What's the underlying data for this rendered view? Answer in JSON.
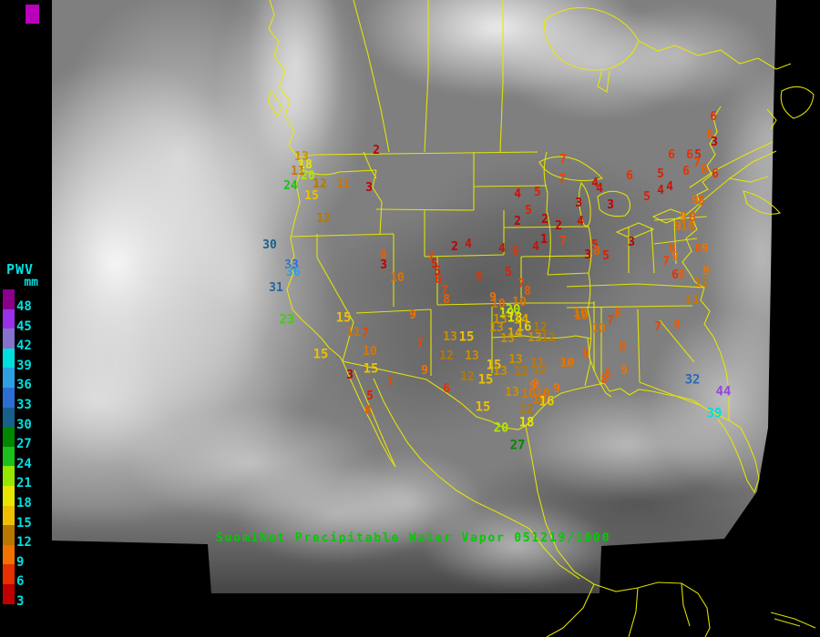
{
  "caption": {
    "text": "SuomiNet Precipitable Water Vapor 051219/1000",
    "color": "#00cc00"
  },
  "legend": {
    "title": "PWV",
    "unit": "mm",
    "text_color": "#00e0e0",
    "entries": [
      {
        "value": 48,
        "color": "#8b008b"
      },
      {
        "value": 45,
        "color": "#9a30e8"
      },
      {
        "value": 42,
        "color": "#8472cc"
      },
      {
        "value": 39,
        "color": "#00dede"
      },
      {
        "value": 36,
        "color": "#2f9fe4"
      },
      {
        "value": 33,
        "color": "#2c6fd4"
      },
      {
        "value": 30,
        "color": "#17608c"
      },
      {
        "value": 27,
        "color": "#008800"
      },
      {
        "value": 24,
        "color": "#1cc01c"
      },
      {
        "value": 21,
        "color": "#94e800"
      },
      {
        "value": 18,
        "color": "#e6e600"
      },
      {
        "value": 15,
        "color": "#eec100"
      },
      {
        "value": 12,
        "color": "#b87800"
      },
      {
        "value": 9,
        "color": "#f07200"
      },
      {
        "value": 6,
        "color": "#e63000"
      },
      {
        "value": 3,
        "color": "#c00000"
      }
    ]
  },
  "map": {
    "outline_color": "#e8e800"
  },
  "corner_box_color": "#bb00bb",
  "chart_data": {
    "type": "scatter",
    "title": "SuomiNet Precipitable Water Vapor 051219/1000",
    "legend_title": "PWV mm",
    "scale_values": [
      48,
      45,
      42,
      39,
      36,
      33,
      30,
      27,
      24,
      21,
      18,
      15,
      12,
      9,
      6,
      3
    ],
    "note": "stations = [PWV mm value, x px, y px] on 900x700 satellite map"
  },
  "stations": [
    [
      2,
      413,
      166
    ],
    [
      13,
      331,
      173
    ],
    [
      18,
      335,
      182
    ],
    [
      11,
      327,
      189
    ],
    [
      20,
      338,
      194
    ],
    [
      24,
      319,
      205
    ],
    [
      12,
      351,
      203
    ],
    [
      11,
      377,
      203
    ],
    [
      3,
      405,
      207
    ],
    [
      15,
      342,
      216
    ],
    [
      12,
      355,
      241
    ],
    [
      30,
      296,
      270
    ],
    [
      33,
      320,
      292
    ],
    [
      36,
      322,
      300
    ],
    [
      31,
      303,
      317
    ],
    [
      23,
      315,
      352
    ],
    [
      8,
      421,
      281
    ],
    [
      3,
      421,
      292
    ],
    [
      10,
      436,
      306
    ],
    [
      15,
      377,
      350
    ],
    [
      11,
      388,
      366
    ],
    [
      7,
      401,
      367
    ],
    [
      10,
      406,
      387
    ],
    [
      15,
      352,
      390
    ],
    [
      3,
      384,
      413
    ],
    [
      7,
      428,
      421
    ],
    [
      5,
      406,
      436
    ],
    [
      8,
      404,
      452
    ],
    [
      9,
      466,
      408
    ],
    [
      7,
      461,
      379
    ],
    [
      15,
      407,
      406
    ],
    [
      7,
      473,
      283
    ],
    [
      5,
      477,
      291
    ],
    [
      5,
      480,
      299
    ],
    [
      6,
      481,
      308
    ],
    [
      7,
      488,
      320
    ],
    [
      8,
      490,
      330
    ],
    [
      9,
      453,
      347
    ],
    [
      2,
      499,
      272
    ],
    [
      4,
      514,
      269
    ],
    [
      4,
      551,
      274
    ],
    [
      6,
      566,
      277
    ],
    [
      5,
      558,
      300
    ],
    [
      6,
      526,
      305
    ],
    [
      7,
      572,
      313
    ],
    [
      8,
      579,
      321
    ],
    [
      9,
      541,
      328
    ],
    [
      10,
      547,
      335
    ],
    [
      5,
      590,
      212
    ],
    [
      4,
      568,
      214
    ],
    [
      5,
      580,
      232
    ],
    [
      2,
      568,
      244
    ],
    [
      2,
      598,
      242
    ],
    [
      2,
      613,
      249
    ],
    [
      1,
      597,
      264
    ],
    [
      4,
      588,
      272
    ],
    [
      7,
      618,
      176
    ],
    [
      7,
      617,
      198
    ],
    [
      4,
      637,
      244
    ],
    [
      3,
      635,
      224
    ],
    [
      4,
      653,
      202
    ],
    [
      4,
      658,
      208
    ],
    [
      3,
      670,
      226
    ],
    [
      6,
      691,
      194
    ],
    [
      7,
      618,
      266
    ],
    [
      5,
      653,
      270
    ],
    [
      8,
      655,
      277
    ],
    [
      3,
      645,
      281
    ],
    [
      5,
      665,
      282
    ],
    [
      3,
      693,
      267
    ],
    [
      6,
      783,
      129
    ],
    [
      8,
      779,
      149
    ],
    [
      3,
      784,
      157
    ],
    [
      6,
      737,
      171
    ],
    [
      6,
      757,
      171
    ],
    [
      5,
      766,
      171
    ],
    [
      7,
      765,
      180
    ],
    [
      8,
      773,
      187
    ],
    [
      6,
      785,
      192
    ],
    [
      5,
      725,
      192
    ],
    [
      6,
      753,
      189
    ],
    [
      4,
      735,
      206
    ],
    [
      4,
      725,
      210
    ],
    [
      5,
      710,
      217
    ],
    [
      9,
      763,
      221
    ],
    [
      8,
      770,
      222
    ],
    [
      9,
      750,
      240
    ],
    [
      8,
      760,
      240
    ],
    [
      9,
      744,
      250
    ],
    [
      10,
      755,
      250
    ],
    [
      8,
      738,
      274
    ],
    [
      9,
      741,
      283
    ],
    [
      7,
      731,
      288
    ],
    [
      8,
      766,
      274
    ],
    [
      9,
      774,
      274
    ],
    [
      6,
      741,
      303
    ],
    [
      8,
      748,
      303
    ],
    [
      9,
      775,
      299
    ],
    [
      11,
      770,
      312
    ],
    [
      11,
      760,
      331
    ],
    [
      10,
      638,
      348
    ],
    [
      8,
      678,
      345
    ],
    [
      7,
      670,
      353
    ],
    [
      10,
      657,
      362
    ],
    [
      7,
      722,
      360
    ],
    [
      8,
      743,
      358
    ],
    [
      8,
      683,
      382
    ],
    [
      8,
      643,
      390
    ],
    [
      10,
      623,
      400
    ],
    [
      9,
      685,
      408
    ],
    [
      8,
      667,
      412
    ],
    [
      8,
      663,
      418
    ],
    [
      32,
      760,
      418
    ],
    [
      44,
      794,
      431
    ],
    [
      39,
      784,
      455
    ],
    [
      13,
      494,
      371
    ],
    [
      15,
      512,
      371
    ],
    [
      12,
      490,
      392
    ],
    [
      13,
      518,
      392
    ],
    [
      15,
      542,
      402
    ],
    [
      12,
      513,
      415
    ],
    [
      15,
      533,
      418
    ],
    [
      13,
      549,
      409
    ],
    [
      12,
      572,
      409
    ],
    [
      13,
      566,
      396
    ],
    [
      11,
      590,
      400
    ],
    [
      12,
      592,
      408
    ],
    [
      10,
      622,
      400
    ],
    [
      13,
      557,
      373
    ],
    [
      16,
      575,
      360
    ],
    [
      13,
      545,
      361
    ],
    [
      12,
      593,
      361
    ],
    [
      12,
      602,
      372
    ],
    [
      13,
      587,
      372
    ],
    [
      14,
      565,
      367
    ],
    [
      10,
      570,
      333
    ],
    [
      20,
      563,
      341
    ],
    [
      19,
      556,
      345
    ],
    [
      13,
      549,
      352
    ],
    [
      18,
      565,
      350
    ],
    [
      14,
      572,
      352
    ],
    [
      10,
      637,
      345
    ],
    [
      9,
      588,
      423
    ],
    [
      6,
      490,
      428
    ],
    [
      15,
      530,
      448
    ],
    [
      13,
      562,
      432
    ],
    [
      10,
      580,
      434
    ],
    [
      9,
      585,
      425
    ],
    [
      10,
      596,
      433
    ],
    [
      9,
      611,
      428
    ],
    [
      10,
      592,
      440
    ],
    [
      16,
      600,
      442
    ],
    [
      12,
      578,
      451
    ],
    [
      18,
      578,
      465
    ],
    [
      20,
      550,
      471
    ],
    [
      27,
      568,
      490
    ]
  ]
}
